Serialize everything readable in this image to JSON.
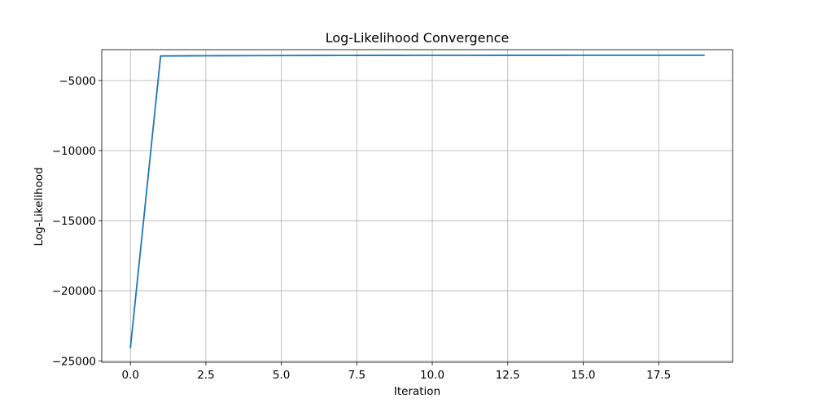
{
  "chart_data": {
    "type": "line",
    "title": "Log-Likelihood Convergence",
    "xlabel": "Iteration",
    "ylabel": "Log-Likelihood",
    "xlim": [
      -0.95,
      19.95
    ],
    "ylim": [
      -25100,
      -2800
    ],
    "grid": true,
    "x_ticks": [
      0.0,
      2.5,
      5.0,
      7.5,
      10.0,
      12.5,
      15.0,
      17.5
    ],
    "x_tick_labels": [
      "0.0",
      "2.5",
      "5.0",
      "7.5",
      "10.0",
      "12.5",
      "15.0",
      "17.5"
    ],
    "y_ticks": [
      -25000,
      -20000,
      -15000,
      -10000,
      -5000
    ],
    "y_tick_labels": [
      "−25000",
      "−20000",
      "−15000",
      "−10000",
      "−5000"
    ],
    "series": [
      {
        "color": "#1f77b4",
        "x": [
          0,
          1,
          2,
          3,
          4,
          5,
          6,
          7,
          8,
          9,
          10,
          11,
          12,
          13,
          14,
          15,
          16,
          17,
          18,
          19
        ],
        "y": [
          -24050,
          -3250,
          -3240,
          -3232,
          -3226,
          -3221,
          -3217,
          -3214,
          -3211,
          -3209,
          -3207,
          -3205,
          -3204,
          -3203,
          -3202,
          -3201,
          -3201,
          -3200,
          -3200,
          -3200
        ]
      }
    ]
  }
}
